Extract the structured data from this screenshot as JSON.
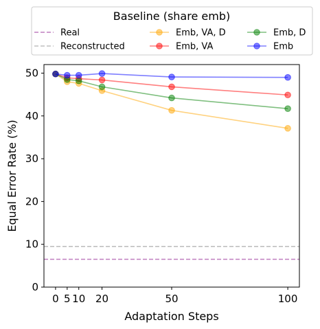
{
  "chart_data": {
    "type": "line",
    "xlabel": "Adaptation Steps",
    "ylabel": "Equal Error Rate (%)",
    "xlim": [
      -5,
      105
    ],
    "ylim": [
      0,
      52
    ],
    "xticks": [
      0,
      5,
      10,
      20,
      50,
      100
    ],
    "yticks": [
      0,
      10,
      20,
      30,
      40,
      50
    ],
    "grid": false,
    "legend": {
      "title": "Baseline (share emb)",
      "placement": "top, outside plot, 3 columns"
    },
    "x": [
      0,
      5,
      10,
      20,
      50,
      100
    ],
    "baselines": [
      {
        "name": "Real",
        "value": 6.5,
        "color": "#bf7fbf",
        "style": "dashed"
      },
      {
        "name": "Reconstructed",
        "value": 9.5,
        "color": "#bfbfbf",
        "style": "dashed"
      }
    ],
    "series": [
      {
        "name": "Emb, VA, D",
        "color": "#ffa500",
        "values": [
          49.8,
          48.0,
          47.6,
          45.9,
          41.3,
          37.1
        ]
      },
      {
        "name": "Emb, VA",
        "color": "#ff0000",
        "values": [
          49.8,
          48.9,
          48.7,
          48.4,
          46.8,
          44.9
        ]
      },
      {
        "name": "Emb, D",
        "color": "#008000",
        "values": [
          49.8,
          48.5,
          48.2,
          46.8,
          44.2,
          41.7
        ]
      },
      {
        "name": "Emb",
        "color": "#0000ff",
        "values": [
          49.8,
          49.5,
          49.5,
          49.9,
          49.1,
          49.0
        ]
      }
    ],
    "legend_order": [
      "Real",
      "Reconstructed",
      "Emb, VA, D",
      "Emb, VA",
      "Emb, D",
      "Emb"
    ]
  }
}
